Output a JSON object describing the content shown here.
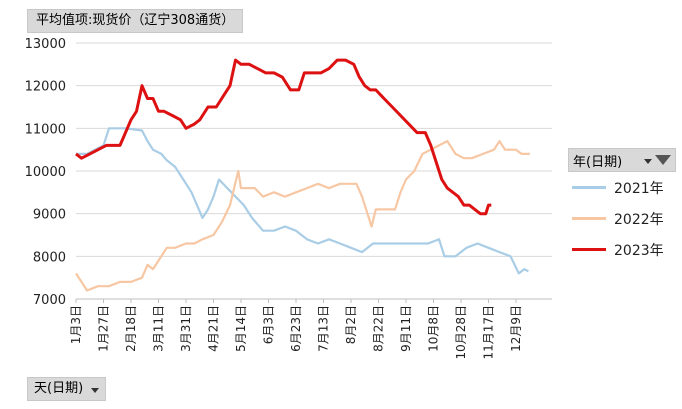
{
  "field_button": {
    "label": "平均值项:现货价（辽宁308通货）"
  },
  "axis_button": {
    "label": "天(日期)"
  },
  "legend": {
    "title": "年(日期)"
  },
  "chart_data": {
    "type": "line",
    "ylim": [
      7000,
      13000
    ],
    "yticks": [
      "7000",
      "8000",
      "9000",
      "10000",
      "11000",
      "12000",
      "13000"
    ],
    "grid": true,
    "legend_position": "right",
    "categories": [
      "1月3日",
      "1月27日",
      "2月18日",
      "3月11日",
      "3月31日",
      "4月21日",
      "5月14日",
      "6月3日",
      "6月23日",
      "7月13日",
      "8月2日",
      "8月22日",
      "9月11日",
      "10月8日",
      "10月28日",
      "11月17日",
      "12月9日"
    ],
    "series": [
      {
        "name": "2021年",
        "color": "#a9cde6",
        "points": [
          [
            0,
            10400
          ],
          [
            0.4,
            10400
          ],
          [
            1.0,
            10600
          ],
          [
            1.2,
            11000
          ],
          [
            1.8,
            11000
          ],
          [
            2.4,
            10950
          ],
          [
            2.6,
            10700
          ],
          [
            2.8,
            10500
          ],
          [
            3.1,
            10400
          ],
          [
            3.3,
            10250
          ],
          [
            3.6,
            10100
          ],
          [
            3.9,
            9800
          ],
          [
            4.2,
            9500
          ],
          [
            4.6,
            8900
          ],
          [
            4.8,
            9100
          ],
          [
            5.0,
            9400
          ],
          [
            5.2,
            9800
          ],
          [
            5.5,
            9600
          ],
          [
            5.8,
            9400
          ],
          [
            6.1,
            9200
          ],
          [
            6.4,
            8900
          ],
          [
            6.8,
            8600
          ],
          [
            7.2,
            8600
          ],
          [
            7.6,
            8700
          ],
          [
            8.0,
            8600
          ],
          [
            8.4,
            8400
          ],
          [
            8.8,
            8300
          ],
          [
            9.2,
            8400
          ],
          [
            9.6,
            8300
          ],
          [
            10.0,
            8200
          ],
          [
            10.4,
            8100
          ],
          [
            10.8,
            8300
          ],
          [
            11.5,
            8300
          ],
          [
            12.2,
            8300
          ],
          [
            12.8,
            8300
          ],
          [
            13.2,
            8400
          ],
          [
            13.4,
            8000
          ],
          [
            13.8,
            8000
          ],
          [
            14.2,
            8200
          ],
          [
            14.6,
            8300
          ],
          [
            15.0,
            8200
          ],
          [
            15.4,
            8100
          ],
          [
            15.8,
            8000
          ],
          [
            16.1,
            7600
          ],
          [
            16.3,
            7700
          ],
          [
            16.45,
            7650
          ]
        ]
      },
      {
        "name": "2022年",
        "color": "#f7c7a3",
        "points": [
          [
            0,
            7600
          ],
          [
            0.2,
            7400
          ],
          [
            0.4,
            7200
          ],
          [
            0.8,
            7300
          ],
          [
            1.2,
            7300
          ],
          [
            1.6,
            7400
          ],
          [
            2.0,
            7400
          ],
          [
            2.4,
            7500
          ],
          [
            2.6,
            7800
          ],
          [
            2.8,
            7700
          ],
          [
            3.0,
            7900
          ],
          [
            3.3,
            8200
          ],
          [
            3.6,
            8200
          ],
          [
            4.0,
            8300
          ],
          [
            4.3,
            8300
          ],
          [
            4.6,
            8400
          ],
          [
            5.0,
            8500
          ],
          [
            5.3,
            8800
          ],
          [
            5.6,
            9200
          ],
          [
            5.9,
            10000
          ],
          [
            6.0,
            9600
          ],
          [
            6.5,
            9600
          ],
          [
            6.8,
            9400
          ],
          [
            7.2,
            9500
          ],
          [
            7.6,
            9400
          ],
          [
            8.0,
            9500
          ],
          [
            8.4,
            9600
          ],
          [
            8.8,
            9700
          ],
          [
            9.2,
            9600
          ],
          [
            9.6,
            9700
          ],
          [
            10.2,
            9700
          ],
          [
            10.4,
            9400
          ],
          [
            10.6,
            9000
          ],
          [
            10.75,
            8700
          ],
          [
            10.9,
            9100
          ],
          [
            11.2,
            9100
          ],
          [
            11.6,
            9100
          ],
          [
            11.8,
            9500
          ],
          [
            12.0,
            9800
          ],
          [
            12.3,
            10000
          ],
          [
            12.6,
            10400
          ],
          [
            12.9,
            10500
          ],
          [
            13.2,
            10600
          ],
          [
            13.5,
            10700
          ],
          [
            13.8,
            10400
          ],
          [
            14.1,
            10300
          ],
          [
            14.4,
            10300
          ],
          [
            14.8,
            10400
          ],
          [
            15.2,
            10500
          ],
          [
            15.4,
            10700
          ],
          [
            15.6,
            10500
          ],
          [
            16.0,
            10500
          ],
          [
            16.2,
            10400
          ],
          [
            16.5,
            10400
          ]
        ]
      },
      {
        "name": "2023年",
        "color": "#dd1111",
        "points": [
          [
            0,
            10400
          ],
          [
            0.2,
            10300
          ],
          [
            0.5,
            10400
          ],
          [
            0.8,
            10500
          ],
          [
            1.1,
            10600
          ],
          [
            1.6,
            10600
          ],
          [
            1.8,
            10900
          ],
          [
            2.0,
            11200
          ],
          [
            2.2,
            11400
          ],
          [
            2.4,
            12000
          ],
          [
            2.6,
            11700
          ],
          [
            2.8,
            11700
          ],
          [
            3.0,
            11400
          ],
          [
            3.2,
            11400
          ],
          [
            3.5,
            11300
          ],
          [
            3.8,
            11200
          ],
          [
            4.0,
            11000
          ],
          [
            4.3,
            11100
          ],
          [
            4.5,
            11200
          ],
          [
            4.8,
            11500
          ],
          [
            5.1,
            11500
          ],
          [
            5.4,
            11800
          ],
          [
            5.6,
            12000
          ],
          [
            5.8,
            12600
          ],
          [
            6.0,
            12500
          ],
          [
            6.3,
            12500
          ],
          [
            6.6,
            12400
          ],
          [
            6.9,
            12300
          ],
          [
            7.2,
            12300
          ],
          [
            7.5,
            12200
          ],
          [
            7.8,
            11900
          ],
          [
            8.1,
            11900
          ],
          [
            8.3,
            12300
          ],
          [
            8.6,
            12300
          ],
          [
            8.9,
            12300
          ],
          [
            9.2,
            12400
          ],
          [
            9.5,
            12600
          ],
          [
            9.8,
            12600
          ],
          [
            10.1,
            12500
          ],
          [
            10.3,
            12200
          ],
          [
            10.5,
            12000
          ],
          [
            10.7,
            11900
          ],
          [
            10.9,
            11900
          ],
          [
            11.2,
            11700
          ],
          [
            11.5,
            11500
          ],
          [
            11.8,
            11300
          ],
          [
            12.1,
            11100
          ],
          [
            12.4,
            10900
          ],
          [
            12.7,
            10900
          ],
          [
            12.9,
            10600
          ],
          [
            13.1,
            10200
          ],
          [
            13.3,
            9800
          ],
          [
            13.5,
            9600
          ],
          [
            13.7,
            9500
          ],
          [
            13.9,
            9400
          ],
          [
            14.1,
            9200
          ],
          [
            14.3,
            9200
          ],
          [
            14.5,
            9100
          ],
          [
            14.7,
            9000
          ],
          [
            14.9,
            9000
          ],
          [
            15.0,
            9200
          ],
          [
            15.1,
            9200
          ]
        ]
      }
    ]
  }
}
